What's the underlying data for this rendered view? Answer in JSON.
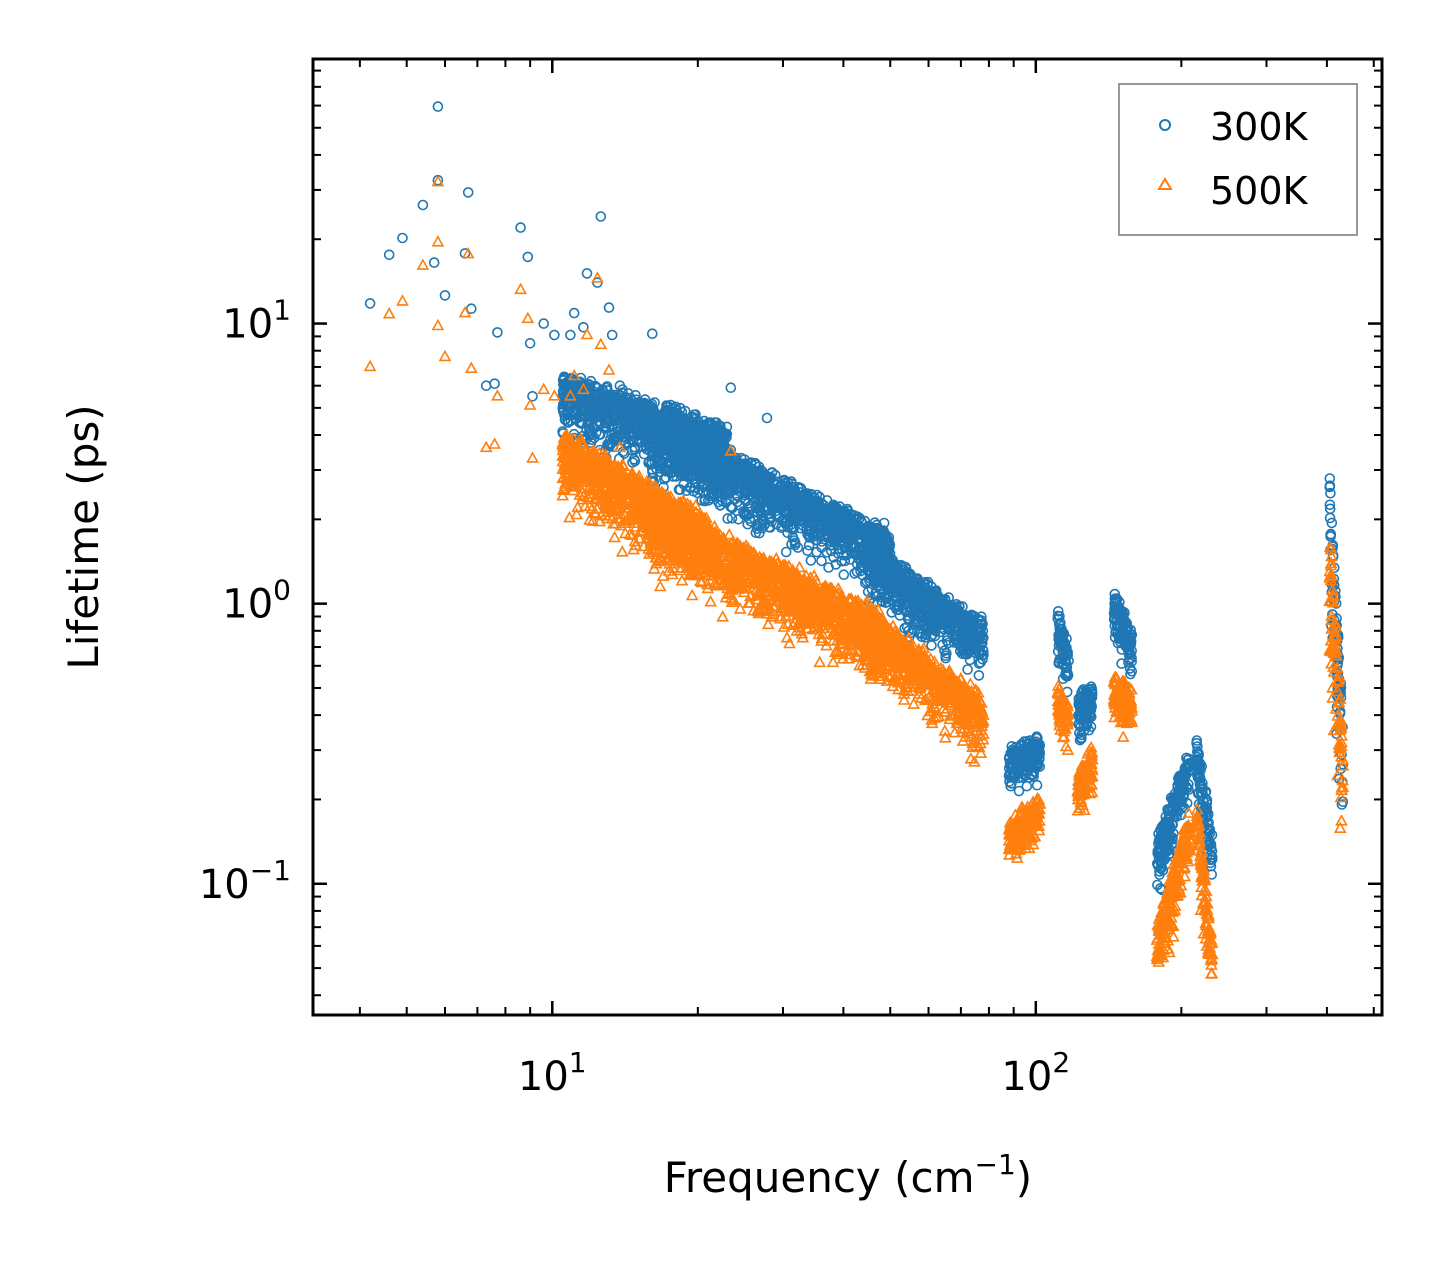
{
  "chart_data": {
    "type": "scatter",
    "title": "",
    "xlabel": "Frequency (cm",
    "xlabel_sup": "−1",
    "xlabel_end": ")",
    "ylabel": "Lifetime (ps)",
    "xscale": "log",
    "yscale": "log",
    "xlim": [
      3.2,
      520
    ],
    "ylim": [
      0.034,
      88
    ],
    "x_ticks": [
      {
        "value": 10,
        "base": "10",
        "exp": "1"
      },
      {
        "value": 100,
        "base": "10",
        "exp": "2"
      }
    ],
    "y_ticks": [
      {
        "value": 0.1,
        "base": "10",
        "exp": "−1"
      },
      {
        "value": 1,
        "base": "10",
        "exp": "0"
      },
      {
        "value": 10,
        "base": "10",
        "exp": "1"
      }
    ],
    "legend_position": "top-right",
    "series": [
      {
        "name": "300K",
        "marker": "circle",
        "color": "#1f77b4",
        "points": [
          [
            4.2,
            11.8
          ],
          [
            4.6,
            17.6
          ],
          [
            4.9,
            20.2
          ],
          [
            5.4,
            26.5
          ],
          [
            5.7,
            16.5
          ],
          [
            5.8,
            59.5
          ],
          [
            5.8,
            32.5
          ],
          [
            6.0,
            12.6
          ],
          [
            6.6,
            17.8
          ],
          [
            6.7,
            29.4
          ],
          [
            6.8,
            11.3
          ],
          [
            7.3,
            6.0
          ],
          [
            7.6,
            6.1
          ],
          [
            7.7,
            9.3
          ],
          [
            8.6,
            22.0
          ],
          [
            8.9,
            17.3
          ],
          [
            9.0,
            8.5
          ],
          [
            9.1,
            5.5
          ],
          [
            9.6,
            10.0
          ],
          [
            10.1,
            9.1
          ],
          [
            10.9,
            9.1
          ],
          [
            11.1,
            10.9
          ],
          [
            11.6,
            9.7
          ],
          [
            11.8,
            15.1
          ],
          [
            12.4,
            14.0
          ],
          [
            12.6,
            24.1
          ],
          [
            13.1,
            11.4
          ],
          [
            13.3,
            9.1
          ],
          [
            13.8,
            6.0
          ],
          [
            16.1,
            9.2
          ],
          [
            23.4,
            5.9
          ],
          [
            27.8,
            4.6
          ]
        ],
        "bands": [
          {
            "x": [
              10.5,
              23
            ],
            "y_start": [
              6.5,
              4.2
            ],
            "spread": 0.65
          },
          {
            "x": [
              16,
              50
            ],
            "y_start": [
              4.6,
              1.8
            ],
            "spread": 0.6
          },
          {
            "x": [
              45,
              78
            ],
            "y_start": [
              1.6,
              0.85
            ],
            "spread": 0.55
          },
          {
            "x": [
              88,
              102
            ],
            "y_start": [
              0.29,
              0.33
            ],
            "spread": 0.35
          },
          {
            "x": [
              111,
              117
            ],
            "y_start": [
              0.92,
              0.7
            ],
            "spread": 0.5
          },
          {
            "x": [
              122,
              131
            ],
            "y_start": [
              0.45,
              0.52
            ],
            "spread": 0.45
          },
          {
            "x": [
              145,
              158
            ],
            "y_start": [
              1.1,
              0.78
            ],
            "spread": 0.5
          },
          {
            "x": [
              178,
              208
            ],
            "y_start": [
              0.14,
              0.3
            ],
            "spread": 0.55
          },
          {
            "x": [
              215,
              232
            ],
            "y_start": [
              0.32,
              0.15
            ],
            "spread": 0.55
          },
          {
            "x": [
              405,
              432
            ],
            "y_start": [
              2.9,
              0.35
            ],
            "spread": 1.3
          }
        ]
      },
      {
        "name": "500K",
        "marker": "triangle",
        "color": "#ff7f0e",
        "points": [
          [
            4.2,
            7.0
          ],
          [
            4.6,
            10.8
          ],
          [
            4.9,
            12.0
          ],
          [
            5.4,
            16.1
          ],
          [
            5.8,
            9.8
          ],
          [
            5.8,
            19.5
          ],
          [
            5.8,
            32.0
          ],
          [
            6.0,
            7.6
          ],
          [
            6.6,
            10.9
          ],
          [
            6.7,
            17.7
          ],
          [
            6.8,
            6.9
          ],
          [
            7.3,
            3.6
          ],
          [
            7.6,
            3.7
          ],
          [
            7.7,
            5.5
          ],
          [
            8.6,
            13.2
          ],
          [
            8.9,
            10.4
          ],
          [
            9.0,
            5.1
          ],
          [
            9.1,
            3.3
          ],
          [
            9.6,
            5.8
          ],
          [
            10.1,
            5.5
          ],
          [
            10.9,
            5.5
          ],
          [
            11.1,
            6.5
          ],
          [
            11.6,
            5.8
          ],
          [
            11.8,
            9.1
          ],
          [
            12.4,
            14.5
          ],
          [
            12.6,
            8.4
          ],
          [
            13.1,
            6.8
          ],
          [
            13.8,
            3.6
          ],
          [
            23.4,
            3.5
          ]
        ],
        "bands": [
          {
            "x": [
              10.5,
              21
            ],
            "y_start": [
              4.0,
              2.0
            ],
            "spread": 0.7
          },
          {
            "x": [
              16,
              48
            ],
            "y_start": [
              2.3,
              0.9
            ],
            "spread": 0.65
          },
          {
            "x": [
              44,
              78
            ],
            "y_start": [
              0.95,
              0.45
            ],
            "spread": 0.6
          },
          {
            "x": [
              88,
              102
            ],
            "y_start": [
              0.16,
              0.2
            ],
            "spread": 0.4
          },
          {
            "x": [
              111,
              117
            ],
            "y_start": [
              0.5,
              0.42
            ],
            "spread": 0.5
          },
          {
            "x": [
              122,
              131
            ],
            "y_start": [
              0.24,
              0.3
            ],
            "spread": 0.45
          },
          {
            "x": [
              145,
              158
            ],
            "y_start": [
              0.55,
              0.47
            ],
            "spread": 0.5
          },
          {
            "x": [
              178,
              208
            ],
            "y_start": [
              0.07,
              0.18
            ],
            "spread": 0.6
          },
          {
            "x": [
              215,
              232
            ],
            "y_start": [
              0.19,
              0.06
            ],
            "spread": 0.6
          },
          {
            "x": [
              405,
              432
            ],
            "y_start": [
              1.9,
              0.3
            ],
            "spread": 1.4
          }
        ]
      }
    ]
  }
}
